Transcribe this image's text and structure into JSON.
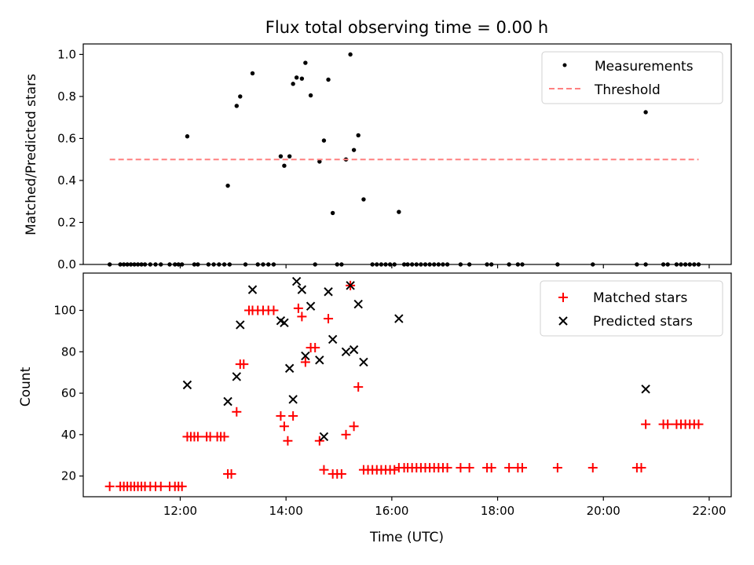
{
  "chart_data": [
    {
      "type": "scatter",
      "title": "Flux total observing time = 0.00 h",
      "xlabel": "",
      "ylabel": "Matched/Predicted stars",
      "ylim": [
        0,
        1.05
      ],
      "yticks": [
        "0.0",
        "0.2",
        "0.4",
        "0.6",
        "0.8",
        "1.0"
      ],
      "legend_position": "top-right",
      "series": [
        {
          "name": "Measurements",
          "marker": "dot",
          "color": "#000000",
          "points": [
            [
              "12:08",
              0.61
            ],
            [
              "12:54",
              0.375
            ],
            [
              "13:04",
              0.755
            ],
            [
              "13:08",
              0.8
            ],
            [
              "13:22",
              0.91
            ],
            [
              "13:54",
              0.515
            ],
            [
              "13:58",
              0.47
            ],
            [
              "14:04",
              0.515
            ],
            [
              "14:08",
              0.86
            ],
            [
              "14:12",
              0.89
            ],
            [
              "14:18",
              0.885
            ],
            [
              "14:22",
              0.96
            ],
            [
              "14:28",
              0.805
            ],
            [
              "14:38",
              0.49
            ],
            [
              "14:43",
              0.59
            ],
            [
              "14:48",
              0.88
            ],
            [
              "14:53",
              0.245
            ],
            [
              "15:08",
              0.5
            ],
            [
              "15:13",
              1.0
            ],
            [
              "15:17",
              0.545
            ],
            [
              "15:22",
              0.615
            ],
            [
              "15:28",
              0.31
            ],
            [
              "16:08",
              0.25
            ],
            [
              "20:48",
              0.725
            ],
            [
              "10:40",
              0
            ],
            [
              "10:52",
              0
            ],
            [
              "10:56",
              0
            ],
            [
              "11:00",
              0
            ],
            [
              "11:04",
              0
            ],
            [
              "11:08",
              0
            ],
            [
              "11:12",
              0
            ],
            [
              "11:16",
              0
            ],
            [
              "11:20",
              0
            ],
            [
              "11:26",
              0
            ],
            [
              "11:32",
              0
            ],
            [
              "11:38",
              0
            ],
            [
              "11:48",
              0
            ],
            [
              "11:54",
              0
            ],
            [
              "11:58",
              0
            ],
            [
              "12:02",
              0
            ],
            [
              "12:16",
              0
            ],
            [
              "12:20",
              0
            ],
            [
              "12:32",
              0
            ],
            [
              "12:38",
              0
            ],
            [
              "12:44",
              0
            ],
            [
              "12:50",
              0
            ],
            [
              "12:56",
              0
            ],
            [
              "13:14",
              0
            ],
            [
              "13:28",
              0
            ],
            [
              "13:34",
              0
            ],
            [
              "13:40",
              0
            ],
            [
              "13:46",
              0
            ],
            [
              "14:33",
              0
            ],
            [
              "14:58",
              0
            ],
            [
              "15:03",
              0
            ],
            [
              "15:38",
              0
            ],
            [
              "15:43",
              0
            ],
            [
              "15:48",
              0
            ],
            [
              "15:53",
              0
            ],
            [
              "15:58",
              0
            ],
            [
              "16:03",
              0
            ],
            [
              "16:14",
              0
            ],
            [
              "16:18",
              0
            ],
            [
              "16:23",
              0
            ],
            [
              "16:28",
              0
            ],
            [
              "16:33",
              0
            ],
            [
              "16:38",
              0
            ],
            [
              "16:43",
              0
            ],
            [
              "16:48",
              0
            ],
            [
              "16:53",
              0
            ],
            [
              "16:58",
              0
            ],
            [
              "17:03",
              0
            ],
            [
              "17:18",
              0
            ],
            [
              "17:28",
              0
            ],
            [
              "17:48",
              0
            ],
            [
              "17:53",
              0
            ],
            [
              "18:13",
              0
            ],
            [
              "18:23",
              0
            ],
            [
              "18:28",
              0
            ],
            [
              "19:08",
              0
            ],
            [
              "19:48",
              0
            ],
            [
              "20:38",
              0
            ],
            [
              "20:48",
              0
            ],
            [
              "21:08",
              0
            ],
            [
              "21:13",
              0
            ],
            [
              "21:23",
              0
            ],
            [
              "21:28",
              0
            ],
            [
              "21:33",
              0
            ],
            [
              "21:38",
              0
            ],
            [
              "21:43",
              0
            ],
            [
              "21:48",
              0
            ]
          ]
        },
        {
          "name": "Threshold",
          "marker": "dashed-line",
          "color": "#ff8080",
          "points": [
            [
              "10:40",
              0.5
            ],
            [
              "21:48",
              0.5
            ]
          ]
        }
      ]
    },
    {
      "type": "scatter",
      "title": "",
      "xlabel": "Time (UTC)",
      "ylabel": "Count",
      "xlim": [
        "10:10",
        "22:25"
      ],
      "ylim": [
        10,
        118
      ],
      "xticks": [
        "12:00",
        "14:00",
        "16:00",
        "18:00",
        "20:00",
        "22:00"
      ],
      "yticks": [
        "20",
        "40",
        "60",
        "80",
        "100"
      ],
      "legend_position": "top-right",
      "series": [
        {
          "name": "Matched stars",
          "marker": "plus",
          "color": "#ff0000",
          "points": [
            [
              "10:40",
              15
            ],
            [
              "10:52",
              15
            ],
            [
              "10:56",
              15
            ],
            [
              "11:00",
              15
            ],
            [
              "11:04",
              15
            ],
            [
              "11:08",
              15
            ],
            [
              "11:12",
              15
            ],
            [
              "11:16",
              15
            ],
            [
              "11:20",
              15
            ],
            [
              "11:26",
              15
            ],
            [
              "11:32",
              15
            ],
            [
              "11:38",
              15
            ],
            [
              "11:48",
              15
            ],
            [
              "11:54",
              15
            ],
            [
              "11:58",
              15
            ],
            [
              "12:02",
              15
            ],
            [
              "12:08",
              39
            ],
            [
              "12:12",
              39
            ],
            [
              "12:16",
              39
            ],
            [
              "12:20",
              39
            ],
            [
              "12:30",
              39
            ],
            [
              "12:34",
              39
            ],
            [
              "12:42",
              39
            ],
            [
              "12:46",
              39
            ],
            [
              "12:50",
              39
            ],
            [
              "12:54",
              21
            ],
            [
              "12:58",
              21
            ],
            [
              "13:04",
              51
            ],
            [
              "13:08",
              74
            ],
            [
              "13:12",
              74
            ],
            [
              "13:18",
              100
            ],
            [
              "13:22",
              100
            ],
            [
              "13:28",
              100
            ],
            [
              "13:34",
              100
            ],
            [
              "13:40",
              100
            ],
            [
              "13:46",
              100
            ],
            [
              "13:54",
              49
            ],
            [
              "13:58",
              44
            ],
            [
              "14:02",
              37
            ],
            [
              "14:08",
              49
            ],
            [
              "14:14",
              101
            ],
            [
              "14:18",
              97
            ],
            [
              "14:22",
              75
            ],
            [
              "14:28",
              82
            ],
            [
              "14:33",
              82
            ],
            [
              "14:38",
              37
            ],
            [
              "14:43",
              23
            ],
            [
              "14:48",
              96
            ],
            [
              "14:53",
              21
            ],
            [
              "14:58",
              21
            ],
            [
              "15:03",
              21
            ],
            [
              "15:08",
              40
            ],
            [
              "15:13",
              112
            ],
            [
              "15:17",
              44
            ],
            [
              "15:22",
              63
            ],
            [
              "15:28",
              23
            ],
            [
              "15:33",
              23
            ],
            [
              "15:38",
              23
            ],
            [
              "15:43",
              23
            ],
            [
              "15:48",
              23
            ],
            [
              "15:53",
              23
            ],
            [
              "15:58",
              23
            ],
            [
              "16:03",
              23
            ],
            [
              "16:08",
              24
            ],
            [
              "16:14",
              24
            ],
            [
              "16:18",
              24
            ],
            [
              "16:23",
              24
            ],
            [
              "16:28",
              24
            ],
            [
              "16:33",
              24
            ],
            [
              "16:38",
              24
            ],
            [
              "16:43",
              24
            ],
            [
              "16:48",
              24
            ],
            [
              "16:53",
              24
            ],
            [
              "16:58",
              24
            ],
            [
              "17:03",
              24
            ],
            [
              "17:18",
              24
            ],
            [
              "17:28",
              24
            ],
            [
              "17:48",
              24
            ],
            [
              "17:53",
              24
            ],
            [
              "18:13",
              24
            ],
            [
              "18:23",
              24
            ],
            [
              "18:28",
              24
            ],
            [
              "19:08",
              24
            ],
            [
              "19:48",
              24
            ],
            [
              "20:38",
              24
            ],
            [
              "20:43",
              24
            ],
            [
              "20:48",
              45
            ],
            [
              "21:08",
              45
            ],
            [
              "21:13",
              45
            ],
            [
              "21:23",
              45
            ],
            [
              "21:28",
              45
            ],
            [
              "21:33",
              45
            ],
            [
              "21:38",
              45
            ],
            [
              "21:43",
              45
            ],
            [
              "21:48",
              45
            ]
          ]
        },
        {
          "name": "Predicted stars",
          "marker": "x",
          "color": "#000000",
          "points": [
            [
              "12:08",
              64
            ],
            [
              "12:54",
              56
            ],
            [
              "13:04",
              68
            ],
            [
              "13:08",
              93
            ],
            [
              "13:22",
              110
            ],
            [
              "13:54",
              95
            ],
            [
              "13:58",
              94
            ],
            [
              "14:04",
              72
            ],
            [
              "14:08",
              57
            ],
            [
              "14:12",
              114
            ],
            [
              "14:18",
              110
            ],
            [
              "14:22",
              78
            ],
            [
              "14:28",
              102
            ],
            [
              "14:38",
              76
            ],
            [
              "14:43",
              39
            ],
            [
              "14:48",
              109
            ],
            [
              "14:53",
              86
            ],
            [
              "15:08",
              80
            ],
            [
              "15:13",
              112
            ],
            [
              "15:17",
              81
            ],
            [
              "15:22",
              103
            ],
            [
              "15:28",
              75
            ],
            [
              "16:08",
              96
            ],
            [
              "20:48",
              62
            ]
          ]
        }
      ]
    }
  ]
}
